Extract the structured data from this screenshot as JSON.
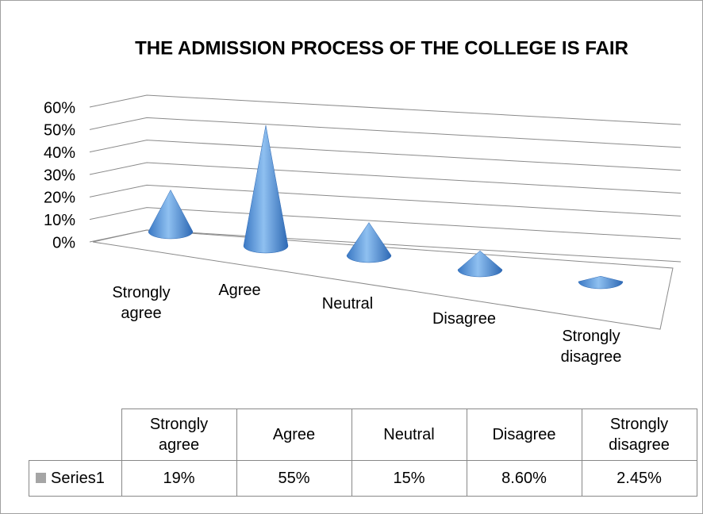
{
  "chart_data": {
    "type": "cone3d",
    "title": "THE ADMISSION PROCESS OF THE COLLEGE IS FAIR",
    "categories": [
      "Strongly agree",
      "Agree",
      "Neutral",
      "Disagree",
      "Strongly disagree"
    ],
    "series": [
      {
        "name": "Series1",
        "color": "#4f8fd6",
        "values": [
          19,
          55,
          15,
          8.6,
          2.45
        ],
        "value_labels": [
          "19%",
          "55%",
          "15%",
          "8.60%",
          "2.45%"
        ]
      }
    ],
    "ylim": [
      0,
      60
    ],
    "yticks": [
      {
        "value": 0,
        "label": "0%"
      },
      {
        "value": 10,
        "label": "10%"
      },
      {
        "value": 20,
        "label": "20%"
      },
      {
        "value": 30,
        "label": "30%"
      },
      {
        "value": 40,
        "label": "40%"
      },
      {
        "value": 50,
        "label": "50%"
      },
      {
        "value": 60,
        "label": "60%"
      }
    ],
    "grid": true
  }
}
